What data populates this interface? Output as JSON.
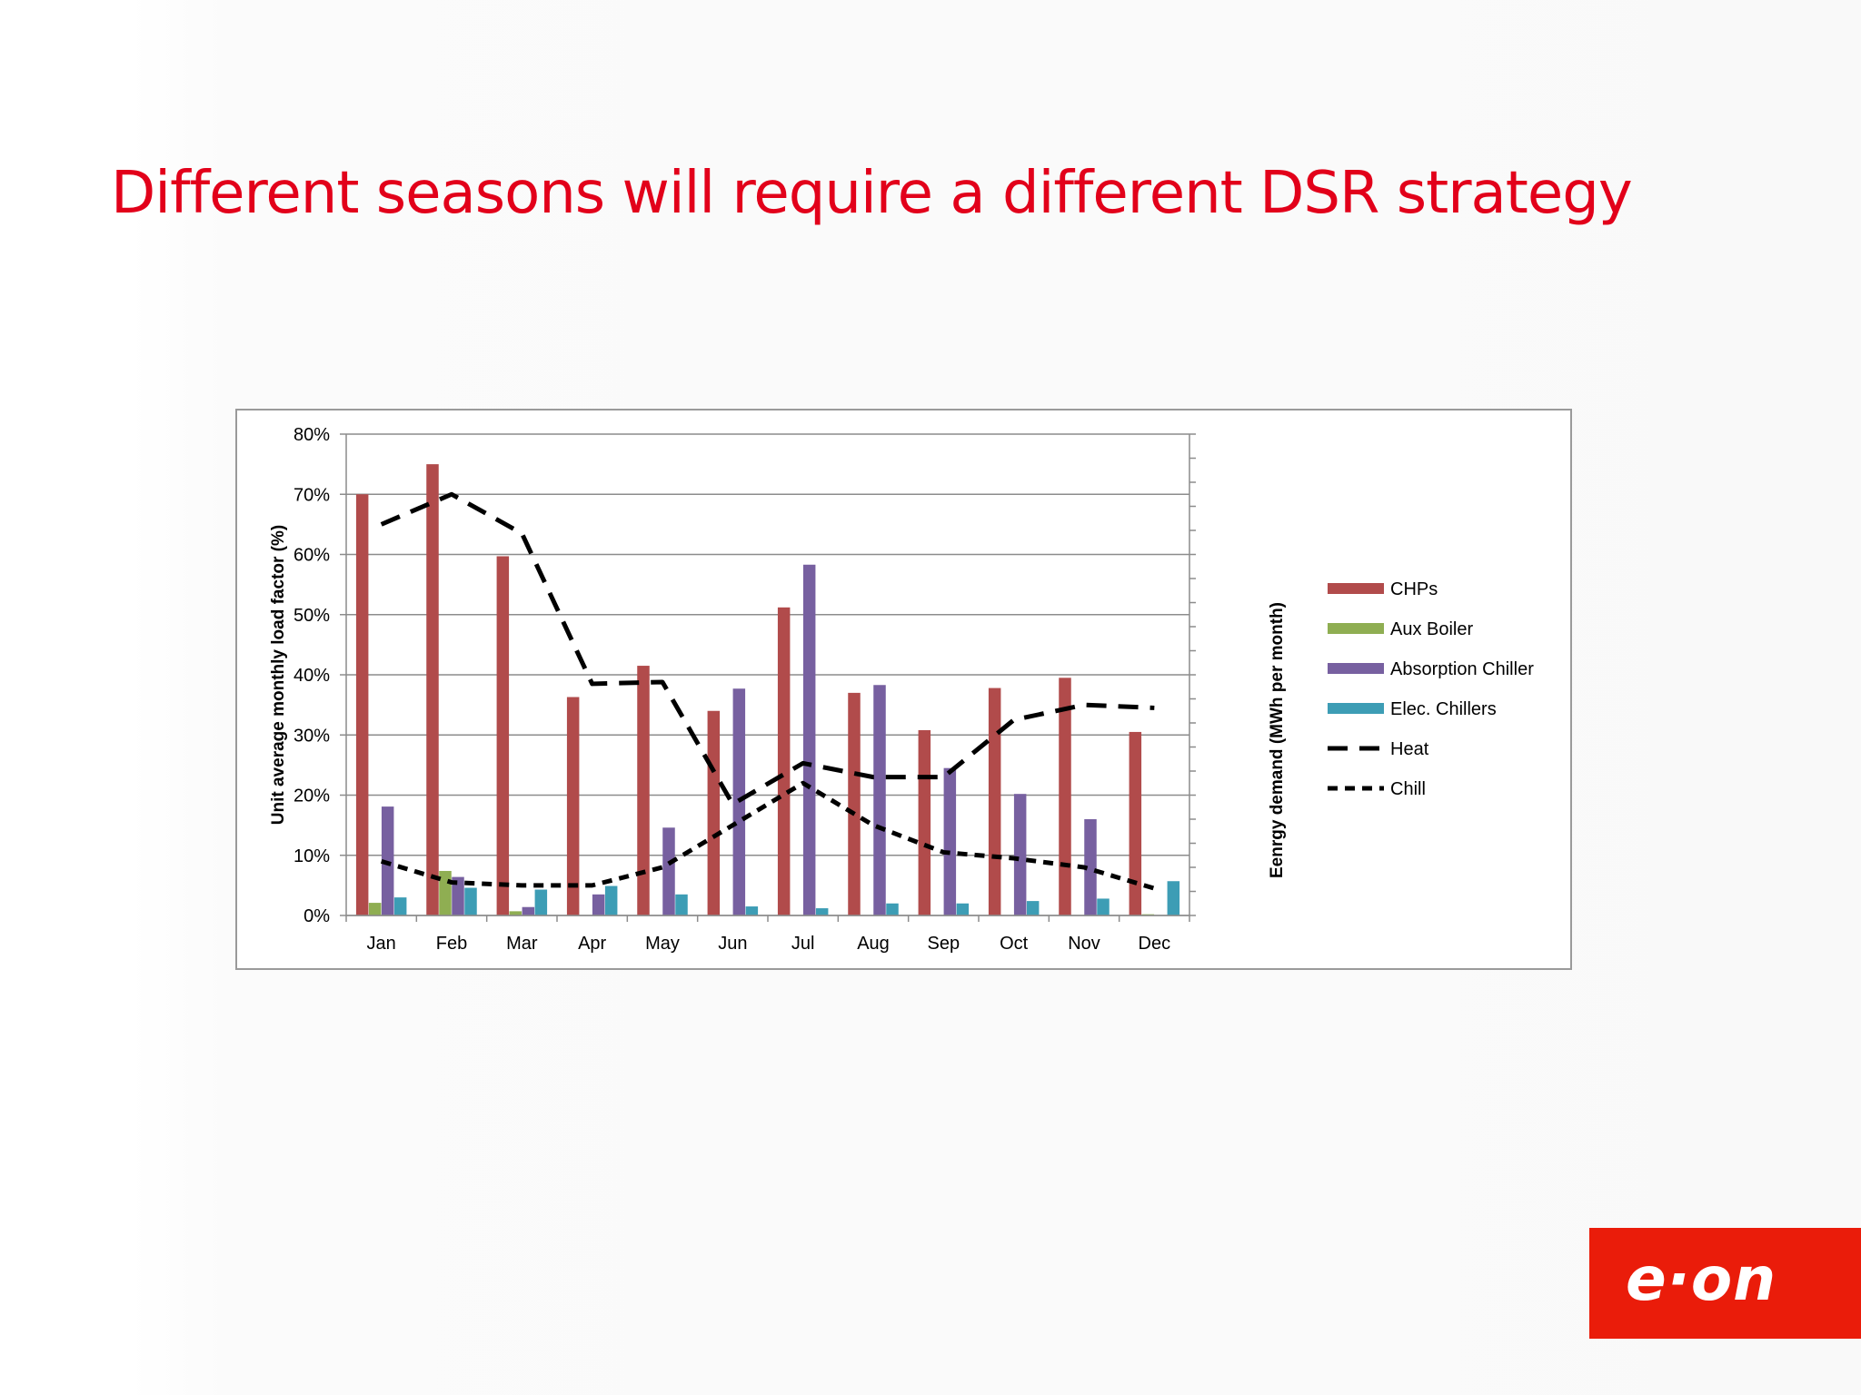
{
  "slide": {
    "title": "Different seasons will require a different DSR strategy",
    "logo_text": "e·on"
  },
  "colors": {
    "title": "#e2001a",
    "logo_bg": "#ea1c0a",
    "CHPs": "#b14b4b",
    "Aux Boiler": "#8fae52",
    "Absorption Chiller": "#7760a0",
    "Elec. Chillers": "#3d9db5",
    "lines": "#000000"
  },
  "chart_data": {
    "type": "bar",
    "title": "",
    "xlabel": "",
    "ylabel": "Unit average monthly load factor (%)",
    "y2label": "Eenrgy demand (MWh per month)",
    "ylim": [
      0,
      80
    ],
    "yticks": [
      "0%",
      "10%",
      "20%",
      "30%",
      "40%",
      "50%",
      "60%",
      "70%",
      "80%"
    ],
    "grid": true,
    "legend_position": "right",
    "categories": [
      "Jan",
      "Feb",
      "Mar",
      "Apr",
      "May",
      "Jun",
      "Jul",
      "Aug",
      "Sep",
      "Oct",
      "Nov",
      "Dec"
    ],
    "series": [
      {
        "name": "CHPs",
        "kind": "bar",
        "values": [
          70,
          75,
          59.7,
          36.3,
          41.5,
          34,
          51.2,
          37,
          30.8,
          37.8,
          39.5,
          30.5
        ]
      },
      {
        "name": "Aux Boiler",
        "kind": "bar",
        "values": [
          2.1,
          7.4,
          0.7,
          0,
          0,
          0,
          0,
          0,
          0,
          0,
          0,
          0.2
        ]
      },
      {
        "name": "Absorption Chiller",
        "kind": "bar",
        "values": [
          18.1,
          6.4,
          1.4,
          3.5,
          14.6,
          37.7,
          58.3,
          38.3,
          24.5,
          20.2,
          16,
          0
        ]
      },
      {
        "name": "Elec. Chillers",
        "kind": "bar",
        "values": [
          3,
          4.6,
          4.3,
          4.9,
          3.5,
          1.5,
          1.2,
          2,
          2,
          2.4,
          2.8,
          5.7
        ]
      },
      {
        "name": "Heat",
        "kind": "line",
        "style": "dashed",
        "values": [
          65,
          70,
          63.5,
          38.5,
          38.8,
          18.5,
          25.3,
          23,
          23,
          32.5,
          35,
          34.5
        ]
      },
      {
        "name": "Chill",
        "kind": "line",
        "style": "dotted",
        "values": [
          9,
          5.5,
          5,
          5,
          8,
          15,
          22,
          15,
          10.5,
          9.5,
          8,
          4.5
        ]
      }
    ]
  }
}
